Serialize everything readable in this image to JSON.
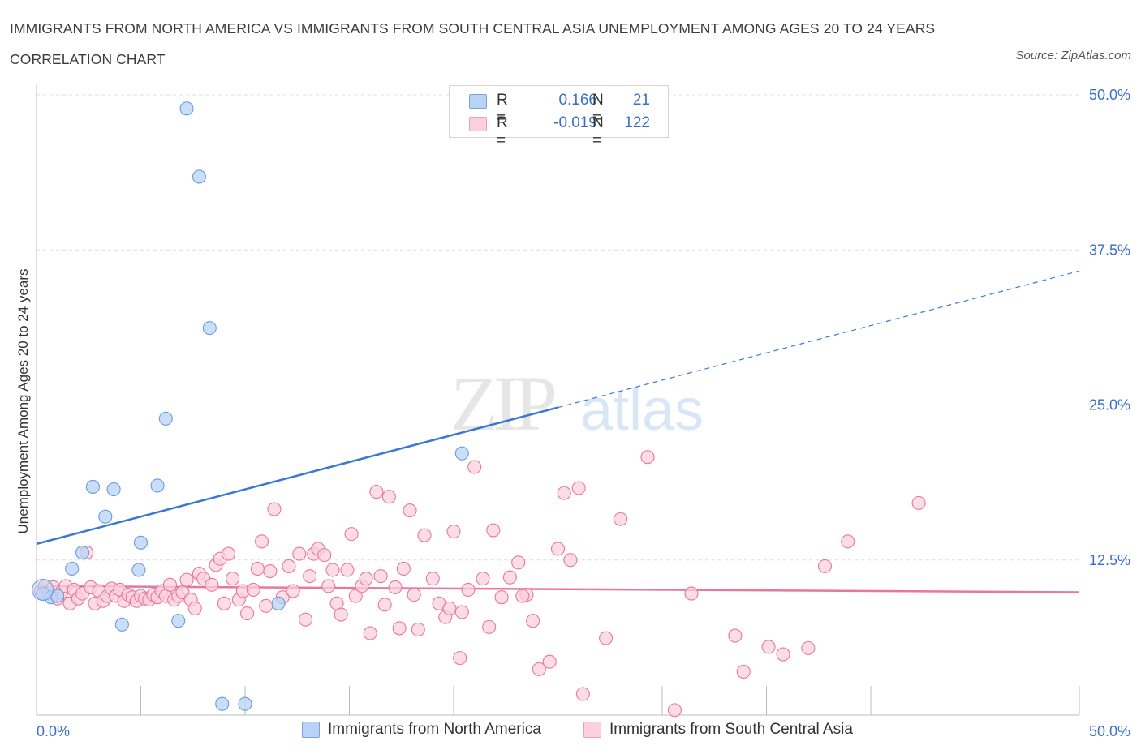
{
  "title": "IMMIGRANTS FROM NORTH AMERICA VS IMMIGRANTS FROM SOUTH CENTRAL ASIA UNEMPLOYMENT AMONG AGES 20 TO 24 YEARS CORRELATION CHART",
  "source": "Source: ZipAtlas.com",
  "watermark": {
    "zip": "ZIP",
    "atlas": "atlas"
  },
  "legend": {
    "rows": [
      {
        "r_label": "R =",
        "r_value": "0.166",
        "n_label": "N =",
        "n_value": "21",
        "color": "#a8c8f0",
        "border": "#6a9be0"
      },
      {
        "r_label": "R =",
        "r_value": "-0.019",
        "n_label": "N =",
        "n_value": "122",
        "color": "#f8c0d0",
        "border": "#e890aa"
      }
    ]
  },
  "bottom_legend": [
    {
      "label": "Immigrants from North America",
      "color": "#b9d3f5",
      "border": "#7aa3de"
    },
    {
      "label": "Immigrants from South Central Asia",
      "color": "#fbd0dc",
      "border": "#eaa0b8"
    }
  ],
  "chart_data": {
    "type": "scatter",
    "title": "IMMIGRANTS FROM NORTH AMERICA VS IMMIGRANTS FROM SOUTH CENTRAL ASIA UNEMPLOYMENT AMONG AGES 20 TO 24 YEARS CORRELATION CHART",
    "xlabel": "",
    "ylabel": "Unemployment Among Ages 20 to 24 years",
    "xlim": [
      0,
      50
    ],
    "ylim": [
      0,
      50
    ],
    "x_tick_labels": [
      "0.0%",
      "50.0%"
    ],
    "y_tick_labels": [
      "12.5%",
      "25.0%",
      "37.5%",
      "50.0%"
    ],
    "y_ticks": [
      12.5,
      25.0,
      37.5,
      50.0
    ],
    "grid": true,
    "legend_position": "top-center",
    "series": [
      {
        "name": "Immigrants from North America",
        "color": "#6a9be0",
        "fill": "#b9d3f5",
        "trend": {
          "x": [
            0,
            25
          ],
          "y": [
            13.8,
            24.8
          ],
          "dashed_extension": {
            "x": [
              25,
              50
            ],
            "y": [
              24.8,
              35.8
            ]
          }
        },
        "points": [
          [
            0.3,
            9.8
          ],
          [
            0.7,
            9.5
          ],
          [
            1.7,
            11.8
          ],
          [
            2.2,
            13.1
          ],
          [
            2.7,
            18.4
          ],
          [
            3.3,
            16.0
          ],
          [
            3.7,
            18.2
          ],
          [
            4.1,
            7.3
          ],
          [
            4.9,
            11.7
          ],
          [
            5.0,
            13.9
          ],
          [
            5.8,
            18.5
          ],
          [
            6.2,
            23.9
          ],
          [
            6.8,
            7.6
          ],
          [
            7.2,
            48.9
          ],
          [
            7.8,
            43.4
          ],
          [
            8.3,
            31.2
          ],
          [
            8.9,
            0.9
          ],
          [
            10.0,
            0.9
          ],
          [
            11.6,
            9.0
          ],
          [
            20.4,
            21.1
          ],
          [
            1.0,
            9.6
          ]
        ]
      },
      {
        "name": "Immigrants from South Central Asia",
        "color": "#e8779b",
        "fill": "#fbd0dc",
        "trend": {
          "x": [
            0,
            50
          ],
          "y": [
            10.4,
            9.9
          ]
        },
        "points": [
          [
            0.2,
            10.0
          ],
          [
            0.4,
            10.4
          ],
          [
            0.6,
            9.8
          ],
          [
            0.8,
            10.3
          ],
          [
            1.0,
            9.4
          ],
          [
            1.2,
            9.9
          ],
          [
            1.4,
            10.4
          ],
          [
            1.6,
            9.0
          ],
          [
            1.8,
            10.1
          ],
          [
            2.0,
            9.4
          ],
          [
            2.2,
            9.8
          ],
          [
            2.4,
            13.1
          ],
          [
            2.6,
            10.3
          ],
          [
            2.8,
            9.0
          ],
          [
            3.0,
            10.0
          ],
          [
            3.2,
            9.2
          ],
          [
            3.4,
            9.6
          ],
          [
            3.6,
            10.2
          ],
          [
            3.8,
            9.6
          ],
          [
            4.0,
            10.1
          ],
          [
            4.2,
            9.2
          ],
          [
            4.4,
            9.7
          ],
          [
            4.6,
            9.5
          ],
          [
            4.8,
            9.2
          ],
          [
            5.0,
            9.6
          ],
          [
            5.2,
            9.4
          ],
          [
            5.4,
            9.3
          ],
          [
            5.6,
            9.7
          ],
          [
            5.8,
            9.5
          ],
          [
            6.0,
            10.0
          ],
          [
            6.2,
            9.6
          ],
          [
            6.4,
            10.5
          ],
          [
            6.6,
            9.3
          ],
          [
            6.8,
            9.6
          ],
          [
            7.0,
            9.9
          ],
          [
            7.2,
            10.9
          ],
          [
            7.4,
            9.3
          ],
          [
            7.6,
            8.6
          ],
          [
            7.8,
            11.4
          ],
          [
            8.0,
            11.0
          ],
          [
            8.4,
            10.5
          ],
          [
            8.6,
            12.1
          ],
          [
            8.8,
            12.6
          ],
          [
            9.0,
            9.0
          ],
          [
            9.2,
            13.0
          ],
          [
            9.4,
            11.0
          ],
          [
            9.7,
            9.3
          ],
          [
            9.9,
            10.0
          ],
          [
            10.1,
            8.2
          ],
          [
            10.4,
            10.1
          ],
          [
            10.6,
            11.8
          ],
          [
            10.8,
            14.0
          ],
          [
            11.0,
            8.8
          ],
          [
            11.2,
            11.6
          ],
          [
            11.4,
            16.6
          ],
          [
            11.8,
            9.5
          ],
          [
            12.1,
            12.0
          ],
          [
            12.3,
            10.0
          ],
          [
            12.6,
            13.0
          ],
          [
            12.9,
            7.7
          ],
          [
            13.1,
            11.2
          ],
          [
            13.3,
            13.0
          ],
          [
            13.5,
            13.4
          ],
          [
            13.8,
            12.9
          ],
          [
            14.0,
            10.4
          ],
          [
            14.2,
            11.7
          ],
          [
            14.4,
            9.0
          ],
          [
            14.6,
            8.1
          ],
          [
            14.9,
            11.7
          ],
          [
            15.1,
            14.6
          ],
          [
            15.3,
            9.6
          ],
          [
            15.6,
            10.4
          ],
          [
            15.8,
            11.0
          ],
          [
            16.0,
            6.6
          ],
          [
            16.3,
            18.0
          ],
          [
            16.5,
            11.2
          ],
          [
            16.7,
            8.9
          ],
          [
            16.9,
            17.6
          ],
          [
            17.2,
            10.3
          ],
          [
            17.4,
            7.0
          ],
          [
            17.6,
            11.8
          ],
          [
            17.9,
            16.5
          ],
          [
            18.1,
            9.7
          ],
          [
            18.3,
            6.9
          ],
          [
            18.6,
            14.5
          ],
          [
            19.0,
            11.0
          ],
          [
            19.3,
            9.0
          ],
          [
            19.6,
            7.9
          ],
          [
            20.0,
            14.8
          ],
          [
            20.3,
            4.6
          ],
          [
            20.7,
            10.1
          ],
          [
            21.0,
            20.0
          ],
          [
            21.4,
            11.0
          ],
          [
            21.7,
            7.1
          ],
          [
            21.9,
            14.9
          ],
          [
            22.3,
            9.5
          ],
          [
            22.7,
            11.1
          ],
          [
            23.1,
            12.3
          ],
          [
            23.5,
            9.7
          ],
          [
            23.8,
            7.6
          ],
          [
            24.1,
            3.7
          ],
          [
            24.6,
            4.3
          ],
          [
            25.0,
            13.4
          ],
          [
            25.3,
            17.9
          ],
          [
            25.6,
            12.5
          ],
          [
            26.0,
            18.3
          ],
          [
            26.2,
            1.7
          ],
          [
            27.3,
            6.2
          ],
          [
            28.0,
            15.8
          ],
          [
            29.3,
            20.8
          ],
          [
            30.6,
            0.4
          ],
          [
            31.4,
            9.8
          ],
          [
            33.5,
            6.4
          ],
          [
            33.9,
            3.5
          ],
          [
            35.1,
            5.5
          ],
          [
            35.8,
            4.9
          ],
          [
            37.0,
            5.4
          ],
          [
            37.8,
            12.0
          ],
          [
            38.9,
            14.0
          ],
          [
            42.3,
            17.1
          ],
          [
            19.8,
            8.6
          ],
          [
            20.4,
            8.3
          ],
          [
            23.3,
            9.6
          ]
        ]
      }
    ]
  }
}
